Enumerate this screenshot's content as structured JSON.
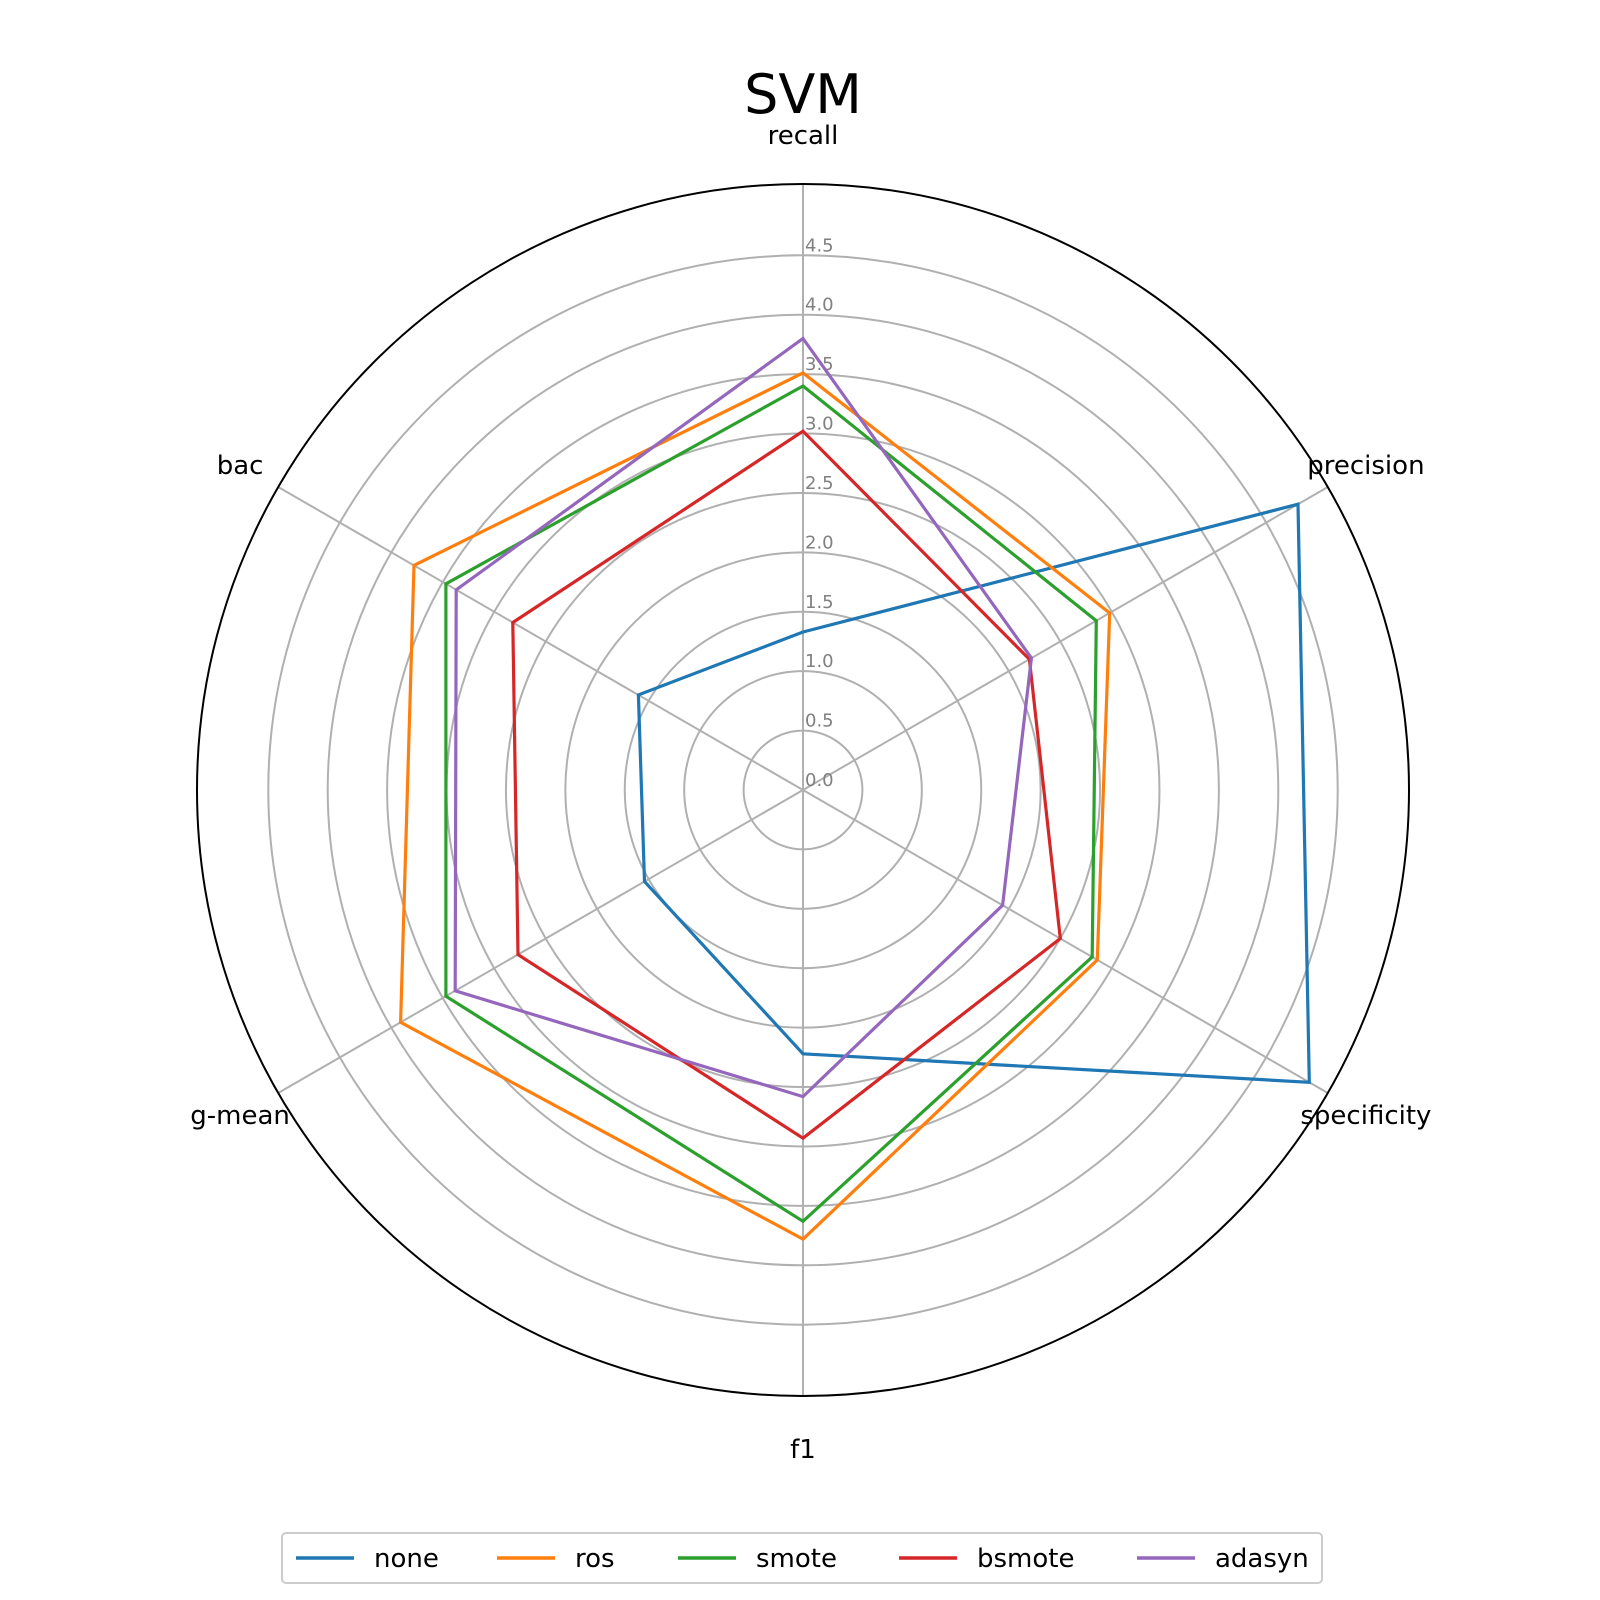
{
  "chart_data": {
    "type": "radar",
    "title": "SVM",
    "axes": [
      "recall",
      "precision",
      "specificity",
      "f1",
      "g-mean",
      "bac"
    ],
    "rlim": [
      0,
      5.1
    ],
    "rticks": [
      0.0,
      0.5,
      1.0,
      1.5,
      2.0,
      2.5,
      3.0,
      3.5,
      4.0,
      4.5
    ],
    "rtick_labels": [
      "0.0",
      "0.5",
      "1.0",
      "1.5",
      "2.0",
      "2.5",
      "3.0",
      "3.5",
      "4.0",
      "4.5"
    ],
    "grid": true,
    "legend_position": "bottom",
    "series": [
      {
        "name": "none",
        "color": "#1f77b4",
        "values": [
          1.33,
          4.81,
          4.92,
          2.22,
          1.54,
          1.6
        ]
      },
      {
        "name": "ros",
        "color": "#ff7f0e",
        "values": [
          3.51,
          2.98,
          2.86,
          3.78,
          3.91,
          3.78
        ]
      },
      {
        "name": "smote",
        "color": "#2ca02c",
        "values": [
          3.4,
          2.85,
          2.81,
          3.63,
          3.47,
          3.47
        ]
      },
      {
        "name": "bsmote",
        "color": "#d62728",
        "values": [
          3.02,
          2.2,
          2.5,
          2.93,
          2.77,
          2.82
        ]
      },
      {
        "name": "adasyn",
        "color": "#9467bd",
        "values": [
          3.8,
          2.22,
          1.94,
          2.58,
          3.38,
          3.37
        ]
      }
    ]
  }
}
